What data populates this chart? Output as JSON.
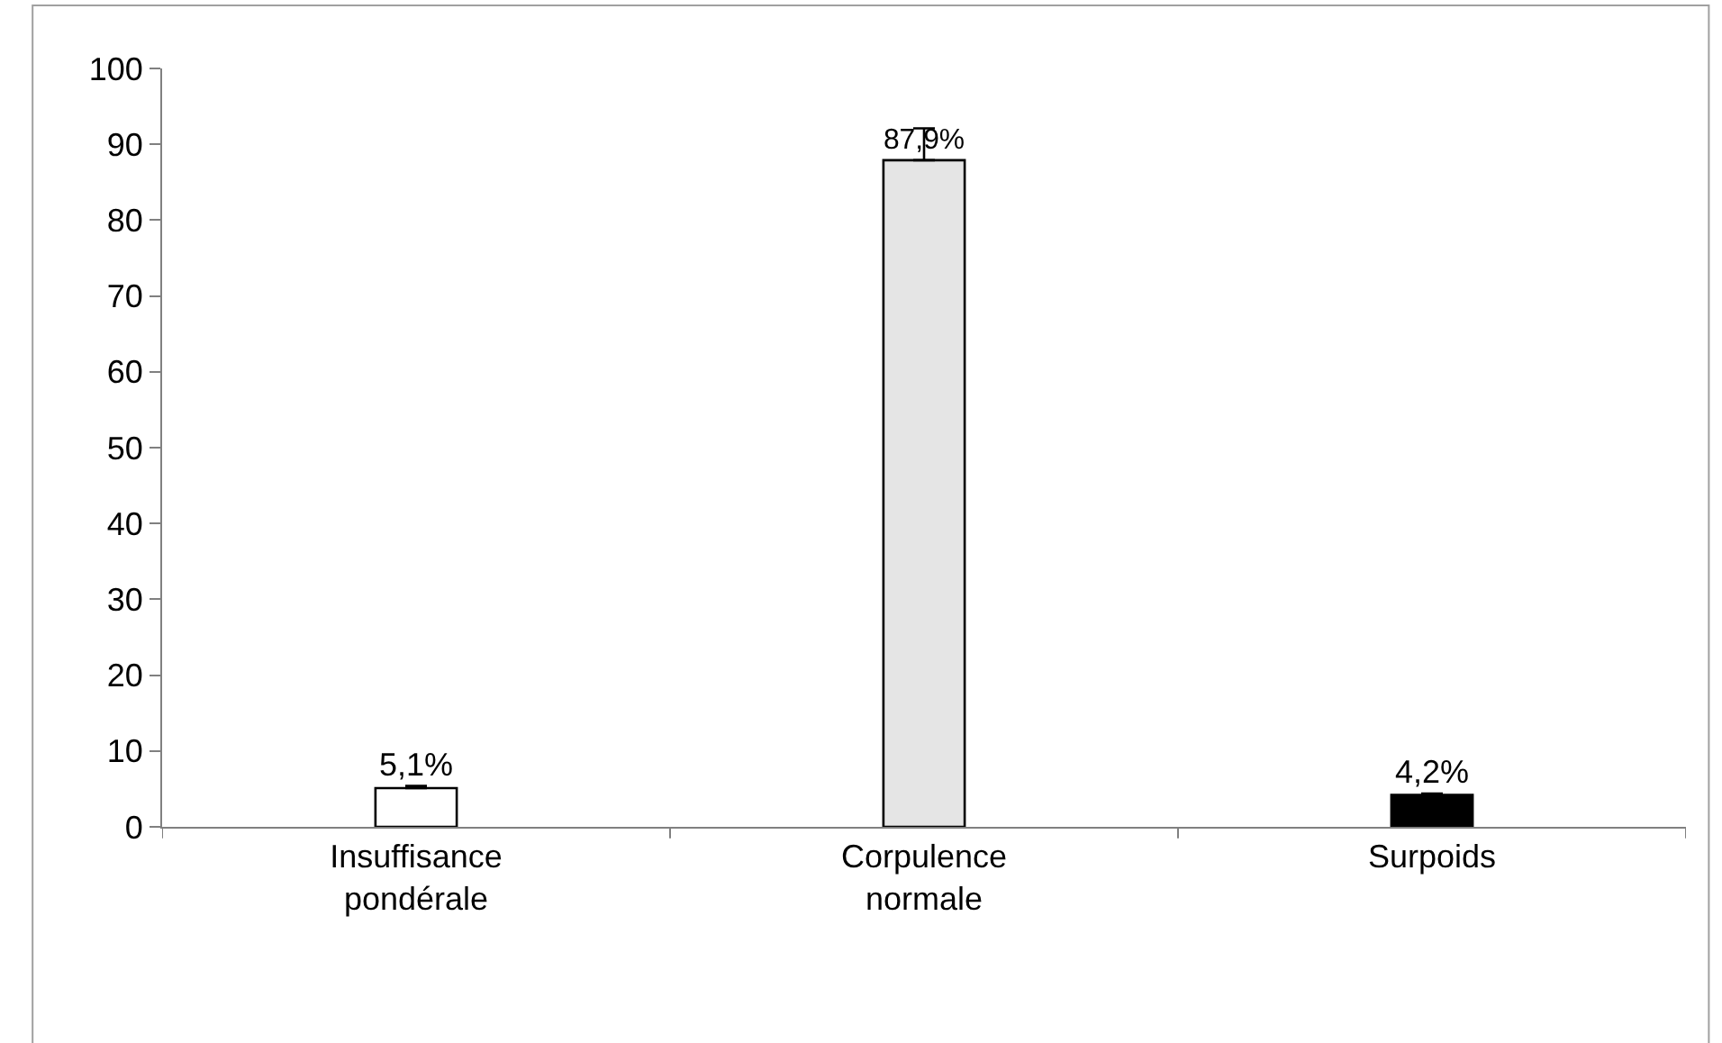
{
  "chart_data": {
    "type": "bar",
    "categories": [
      "Insuffisance pondérale",
      "Corpulence normale",
      "Surpoids"
    ],
    "values": [
      5.1,
      87.9,
      4.2
    ],
    "colors": [
      "#ffffff",
      "#e5e5e5",
      "#000000"
    ],
    "errors": [
      [
        5.1,
        5.4
      ],
      [
        87.9,
        92.1
      ],
      [
        4.2,
        4.4
      ]
    ],
    "value_labels": [
      "5,1%",
      "87,9%",
      "4,2%"
    ],
    "ylim": [
      0,
      100
    ],
    "yticks": [
      0,
      10,
      20,
      30,
      40,
      50,
      60,
      70,
      80,
      90,
      100
    ],
    "legend": false
  }
}
